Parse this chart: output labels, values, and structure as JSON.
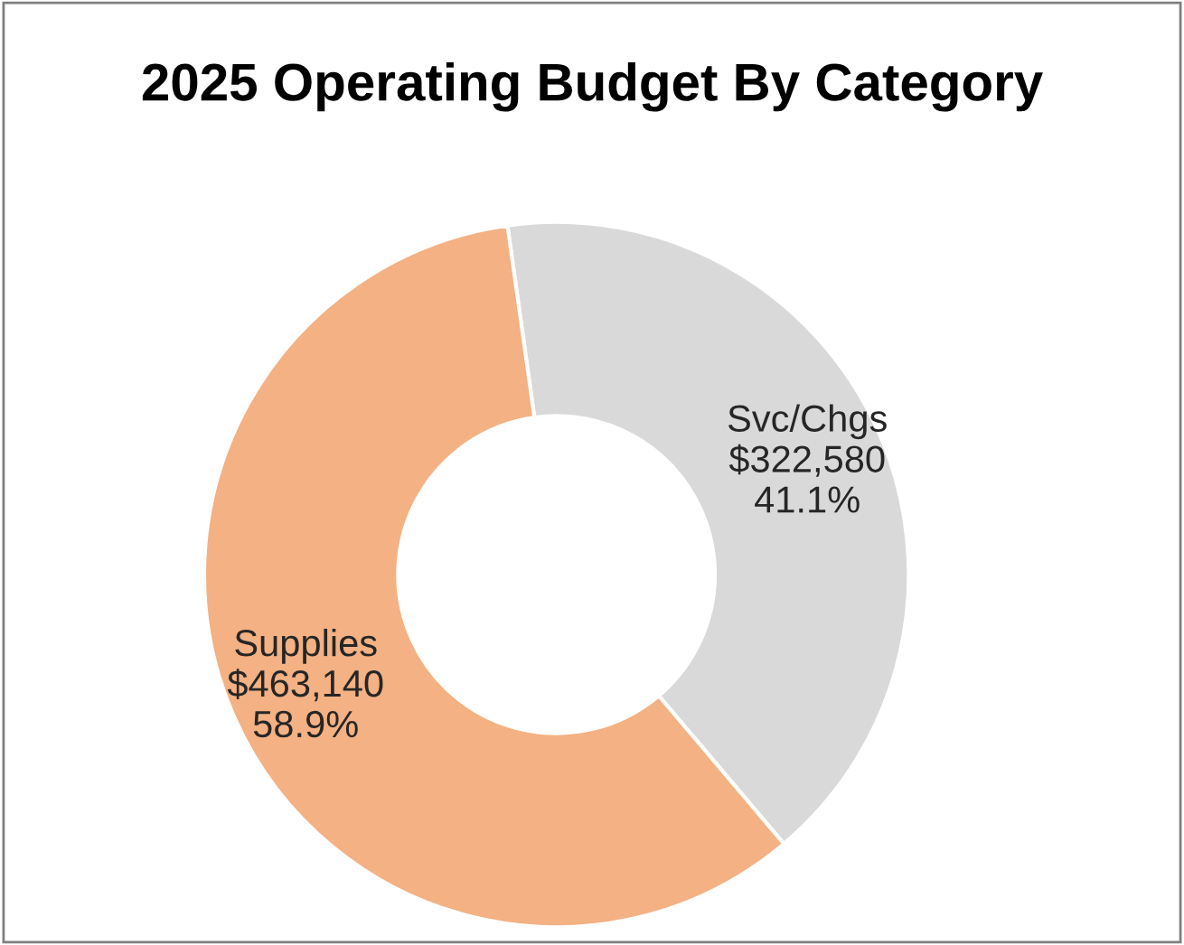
{
  "chart_data": {
    "type": "donut",
    "title": "2025 Operating Budget By Category",
    "categories": [
      "Svc/Chgs",
      "Supplies"
    ],
    "values": [
      322580,
      463140
    ],
    "colors": [
      "#d9d9d9",
      "#f4b183"
    ],
    "value_labels": [
      "$322,580\n41.1%",
      "$463,140\n58.9%"
    ],
    "legend": false
  }
}
